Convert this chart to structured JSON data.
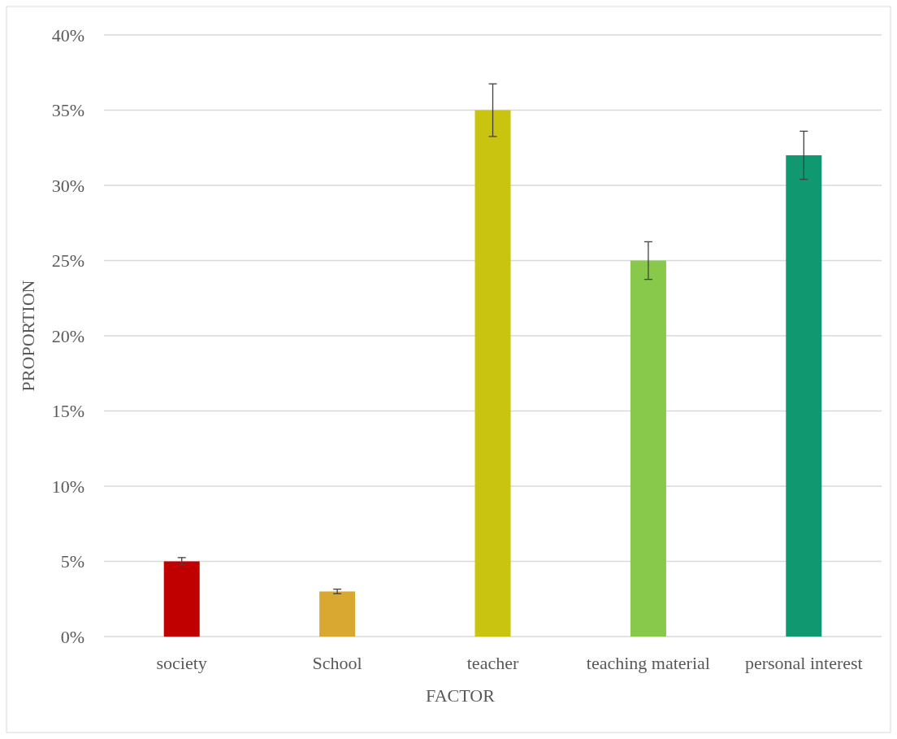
{
  "chart_data": {
    "type": "bar",
    "xlabel": "FACTOR",
    "ylabel": "PROPORTION",
    "categories": [
      "society",
      "School",
      "teacher",
      "teaching material",
      "personal interest"
    ],
    "values": [
      5,
      3,
      35,
      25,
      32
    ],
    "errors": [
      0.25,
      0.15,
      1.75,
      1.25,
      1.6
    ],
    "colors": [
      "#c00000",
      "#d8a830",
      "#c8c410",
      "#88c84a",
      "#109870"
    ],
    "ylim": [
      0,
      40
    ],
    "yticks": [
      {
        "value": 0,
        "label": "0%"
      },
      {
        "value": 5,
        "label": "5%"
      },
      {
        "value": 10,
        "label": "10%"
      },
      {
        "value": 15,
        "label": "15%"
      },
      {
        "value": 20,
        "label": "20%"
      },
      {
        "value": 25,
        "label": "25%"
      },
      {
        "value": 30,
        "label": "30%"
      },
      {
        "value": 35,
        "label": "35%"
      },
      {
        "value": 40,
        "label": "40%"
      }
    ],
    "grid": "y"
  }
}
